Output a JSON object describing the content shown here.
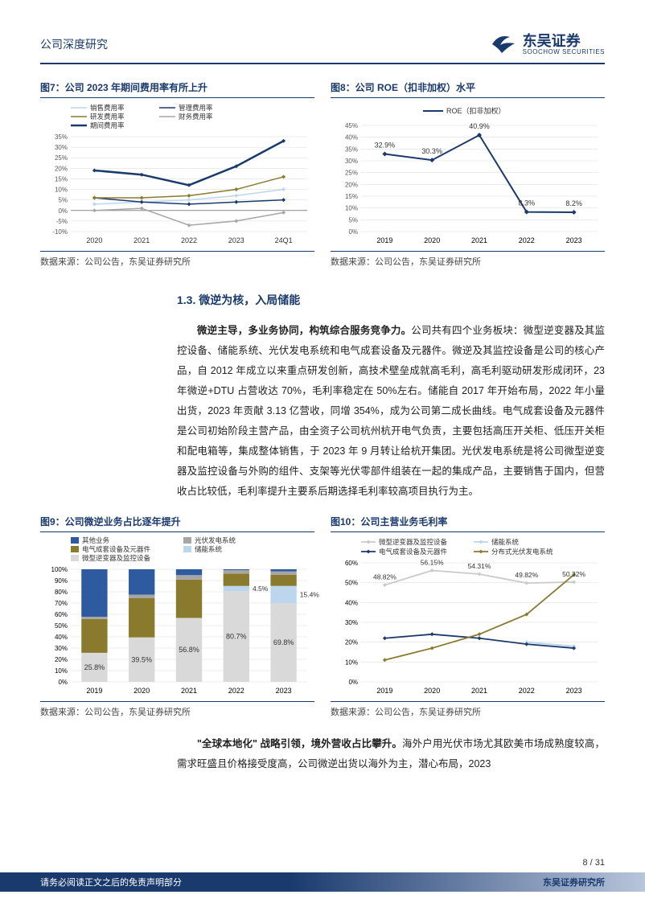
{
  "header": {
    "doc_title": "公司深度研究",
    "brand_cn": "东吴证券",
    "brand_en": "SOOCHOW SECURITIES"
  },
  "colors": {
    "brand_navy": "#1a3a6e",
    "olive": "#8a7a2e",
    "grey": "#a6a6a6",
    "lightblue": "#bcd6ed",
    "blue_fill": "#2e5aa0",
    "axis": "#666666",
    "grid": "#d9d9d9",
    "text": "#333333"
  },
  "fig7": {
    "title": "图7：公司 2023 年期间费用率有所上升",
    "source": "数据来源：公司公告，东吴证券研究所",
    "type": "line",
    "x": [
      "2020",
      "2021",
      "2022",
      "2023",
      "24Q1"
    ],
    "ylim": [
      -10,
      35
    ],
    "ytick_step": 5,
    "legend": [
      {
        "label": "销售费用率",
        "color": "#bcd6ed"
      },
      {
        "label": "管理费用率",
        "color": "#1a3a6e"
      },
      {
        "label": "研发费用率",
        "color": "#8a7a2e"
      },
      {
        "label": "财务费用率",
        "color": "#a6a6a6"
      },
      {
        "label": "期间费用率",
        "color": "#1a3a6e",
        "thick": true
      }
    ],
    "series": {
      "sales": [
        3,
        4,
        5,
        7,
        10
      ],
      "admin": [
        6,
        4,
        3,
        4,
        5
      ],
      "rd": [
        6,
        6,
        7,
        10,
        16
      ],
      "finance": [
        0,
        1,
        -7,
        -5,
        -1
      ],
      "period": [
        19,
        17,
        12,
        21,
        33
      ]
    },
    "line_width": 1.5,
    "period_line_width": 2.5,
    "background_color": "#ffffff"
  },
  "fig8": {
    "title": "图8：公司 ROE（扣非加权）水平",
    "source": "数据来源：公司公告，东吴证券研究所",
    "type": "line",
    "x": [
      "2019",
      "2020",
      "2021",
      "2022",
      "2023"
    ],
    "ylim": [
      0,
      45
    ],
    "ytick_step": 5,
    "legend": [
      {
        "label": "ROE（扣非加权）",
        "color": "#1a3a6e"
      }
    ],
    "values": [
      32.9,
      30.3,
      40.9,
      8.3,
      8.2
    ],
    "value_labels": [
      "32.9%",
      "30.3%",
      "40.9%",
      "8.3%",
      "8.2%"
    ],
    "marker": "diamond",
    "marker_size": 6,
    "line_width": 2,
    "background_color": "#ffffff"
  },
  "section": {
    "heading": "1.3. 微逆为核，入局储能",
    "para1_lead": "微逆主导，多业务协同，构筑综合服务竞争力。",
    "para1_body": "公司共有四个业务板块：微型逆变器及其监控设备、储能系统、光伏发电系统和电气成套设备及元器件。微逆及其监控设备是公司的核心产品，自 2012 年成立以来重点研发创新，高技术壁垒成就高毛利，高毛利驱动研发形成闭环，23 年微逆+DTU 占营收达 70%，毛利率稳定在 50%左右。储能自 2017 年开始布局，2022 年小量出货，2023 年贡献 3.13 亿营收，同增 354%，成为公司第二成长曲线。电气成套设备及元器件是公司初始阶段主营产品，由全资子公司杭州杭开电气负责，主要包括高压开关柜、低压开关柜和配电箱等，集成整体销售，于 2023 年 9 月转让给杭开集团。光伏发电系统是将公司微型逆变器及监控设备与外购的组件、支架等光伏零部件组装在一起的集成产品，主要销售于国内，但营收占比较低，毛利率提升主要系后期选择毛利率较高项目执行为主。",
    "para2_lead": "\"全球本地化\" 战略引领，境外营收占比攀升。",
    "para2_body": "海外户用光伏市场尤其欧美市场成熟度较高，需求旺盛且价格接受度高，公司微逆出货以海外为主，潜心布局，2023"
  },
  "fig9": {
    "title": "图9：公司微逆业务占比逐年提升",
    "source": "数据来源：公司公告，东吴证券研究所",
    "type": "stacked-bar",
    "x": [
      "2019",
      "2020",
      "2021",
      "2022",
      "2023"
    ],
    "ylim": [
      0,
      100
    ],
    "ytick_step": 10,
    "legend": [
      {
        "label": "其他业务",
        "color": "#2e5aa0"
      },
      {
        "label": "光伏发电系统",
        "color": "#a6a6a6"
      },
      {
        "label": "电气成套设备及元器件",
        "color": "#8a7a2e"
      },
      {
        "label": "储能系统",
        "color": "#bcd6ed"
      },
      {
        "label": "微型逆变器及监控设备",
        "color": "#d9d9d9"
      }
    ],
    "stack_order_top_to_bottom": [
      "other",
      "pv",
      "elec",
      "storage",
      "micro"
    ],
    "series": {
      "micro": [
        25.8,
        39.5,
        56.8,
        80.7,
        69.8
      ],
      "storage": [
        0,
        0,
        0,
        4.5,
        15.4
      ],
      "elec": [
        30,
        35,
        34,
        11,
        10
      ],
      "pv": [
        2,
        3,
        4,
        3,
        3
      ],
      "other": [
        42.2,
        22.5,
        5.2,
        0.8,
        1.8
      ]
    },
    "labels_shown": {
      "micro": [
        "25.8%",
        "39.5%",
        "56.8%",
        "80.7%",
        "69.8%"
      ],
      "storage": [
        null,
        null,
        null,
        "4.5%",
        "15.4%"
      ]
    },
    "bar_width": 0.55,
    "background_color": "#ffffff"
  },
  "fig10": {
    "title": "图10：公司主营业务毛利率",
    "source": "数据来源：公司公告，东吴证券研究所",
    "type": "line",
    "x": [
      "2019",
      "2020",
      "2021",
      "2022",
      "2023"
    ],
    "ylim": [
      0,
      60
    ],
    "ytick_step": 10,
    "legend": [
      {
        "label": "微型逆变器及监控设备",
        "color": "#c9c9c9"
      },
      {
        "label": "储能系统",
        "color": "#bcd6ed"
      },
      {
        "label": "电气成套设备及元器件",
        "color": "#1a3a6e"
      },
      {
        "label": "分布式光伏发电系统",
        "color": "#8a7a2e"
      }
    ],
    "series": {
      "micro": [
        48.82,
        56.15,
        54.31,
        49.82,
        50.32
      ],
      "storage": [
        null,
        null,
        null,
        20,
        18
      ],
      "elec": [
        22,
        24,
        22,
        19,
        17
      ],
      "pvdist": [
        11,
        17,
        24,
        34,
        54
      ]
    },
    "value_labels": {
      "micro": [
        "48.82%",
        "56.15%",
        "54.31%",
        "49.82%",
        "50.32%"
      ]
    },
    "marker": "diamond",
    "marker_size": 5,
    "line_width": 1.8,
    "background_color": "#ffffff"
  },
  "footer": {
    "page": "8 / 31",
    "disclaimer": "请务必阅读正文之后的免责声明部分",
    "right": "东吴证券研究所"
  }
}
